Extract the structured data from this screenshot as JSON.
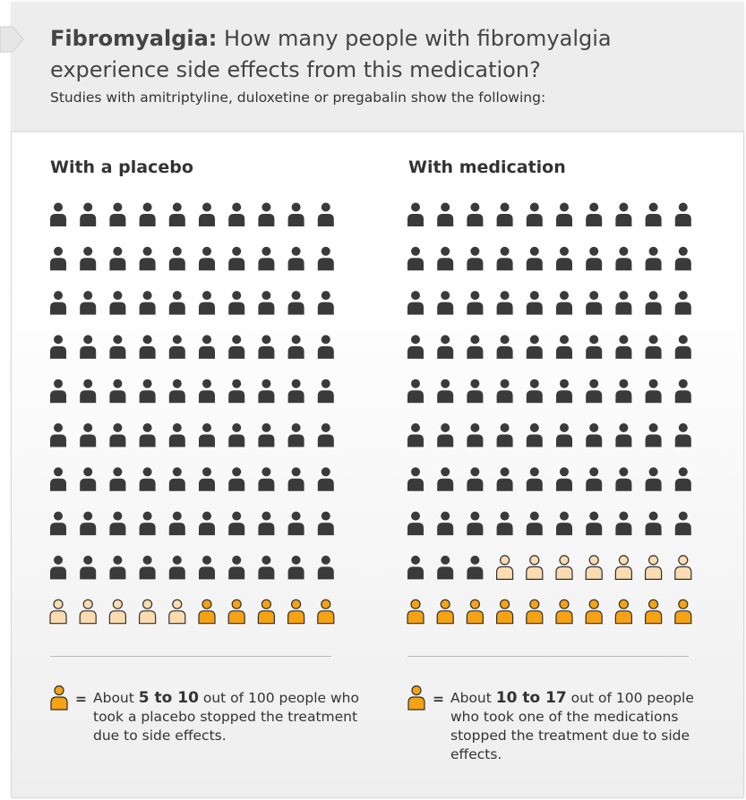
{
  "header": {
    "title_bold": "Fibromyalgia:",
    "title_rest": " How many people with fibromyalgia experience side effects from this medication?",
    "subtitle": "Studies with amitriptyline, duloxetine or pregabalin show the following:"
  },
  "colors": {
    "no_effect": "#3a3a3a",
    "uncertain": "#fbdcb0",
    "side_effect": "#f5a214",
    "icon_outline": "#2f2f2f"
  },
  "chart_data": [
    {
      "type": "icon-array",
      "title": "With a placebo",
      "total": 100,
      "columns": 10,
      "groups": [
        {
          "key": "no_effect",
          "count": 90
        },
        {
          "key": "uncertain",
          "count": 5
        },
        {
          "key": "side_effect",
          "count": 5
        }
      ],
      "legend": {
        "before": "About ",
        "range": "5 to 10",
        "after": " out of 100 people who took a placebo stopped the treatment due to side effects."
      }
    },
    {
      "type": "icon-array",
      "title": "With medication",
      "total": 100,
      "columns": 10,
      "groups": [
        {
          "key": "no_effect",
          "count": 83
        },
        {
          "key": "uncertain",
          "count": 7
        },
        {
          "key": "side_effect",
          "count": 10
        }
      ],
      "legend": {
        "before": "About ",
        "range": "10 to 17",
        "after": " out of 100 people who took one of the medications stopped the treatment due to side effects."
      }
    }
  ],
  "legend_equals": "="
}
